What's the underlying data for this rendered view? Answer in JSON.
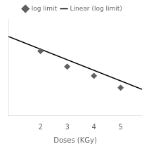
{
  "chart_data": {
    "type": "scatter",
    "xlabel": "Doses (KGy)",
    "series": [
      {
        "name": "log limit",
        "type": "scatter",
        "marker": "diamond",
        "color": "#606060",
        "x": [
          2,
          3,
          4,
          5
        ],
        "values": [
          1.75,
          1.58,
          1.48,
          1.35
        ]
      },
      {
        "name": "Linear (log limit)",
        "type": "line",
        "line_style": "solid",
        "color": "#000000",
        "x": [
          0.8,
          5.8
        ],
        "values": [
          1.908,
          1.333
        ]
      }
    ],
    "xlim": [
      0.8,
      5.8
    ],
    "xticks": [
      2,
      3,
      4,
      5
    ],
    "ylim": [
      1.05,
      2.1
    ],
    "grid": false,
    "legend": "top",
    "tick_labels": "x"
  }
}
